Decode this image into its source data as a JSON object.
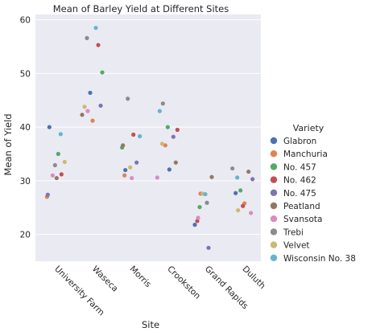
{
  "chart_data": {
    "type": "scatter",
    "title": "Mean of Barley Yield at Different Sites",
    "xlabel": "Site",
    "ylabel": "Mean of Yield",
    "categories": [
      "University Farm",
      "Waseca",
      "Morris",
      "Crookston",
      "Grand Rapids",
      "Duluth"
    ],
    "y_ticks": [
      20,
      30,
      40,
      50,
      60
    ],
    "ylim": [
      15,
      61
    ],
    "grid": true,
    "legend_title": "Variety",
    "legend_position": "right",
    "series": [
      {
        "name": "Glabron",
        "color": "#4c72b0",
        "values": [
          40.0,
          46.4,
          32.0,
          32.1,
          21.8,
          27.7
        ]
      },
      {
        "name": "Manchuria",
        "color": "#dd8452",
        "values": [
          27.0,
          41.2,
          31.0,
          36.6,
          27.6,
          25.8
        ]
      },
      {
        "name": "No. 457",
        "color": "#55a868",
        "values": [
          35.0,
          50.2,
          36.2,
          40.0,
          25.1,
          28.2
        ]
      },
      {
        "name": "No. 462",
        "color": "#c44e52",
        "values": [
          31.2,
          55.3,
          38.6,
          39.5,
          22.5,
          25.3
        ]
      },
      {
        "name": "No. 475",
        "color": "#8172b3",
        "values": [
          27.4,
          44.0,
          33.4,
          38.2,
          17.5,
          30.3
        ]
      },
      {
        "name": "Peatland",
        "color": "#937860",
        "values": [
          30.5,
          42.3,
          36.6,
          33.4,
          30.7,
          31.7
        ]
      },
      {
        "name": "Svansota",
        "color": "#da8bc3",
        "values": [
          31.0,
          43.0,
          30.5,
          30.6,
          23.1,
          24.0
        ]
      },
      {
        "name": "Trebi",
        "color": "#8c8c8c",
        "values": [
          32.9,
          56.6,
          45.3,
          44.4,
          25.9,
          32.3
        ]
      },
      {
        "name": "Velvet",
        "color": "#ccb974",
        "values": [
          33.5,
          43.8,
          32.5,
          36.9,
          27.6,
          24.5
        ]
      },
      {
        "name": "Wisconsin No. 38",
        "color": "#64b5cd",
        "values": [
          38.7,
          58.5,
          38.3,
          43.0,
          27.5,
          30.6
        ]
      }
    ]
  }
}
